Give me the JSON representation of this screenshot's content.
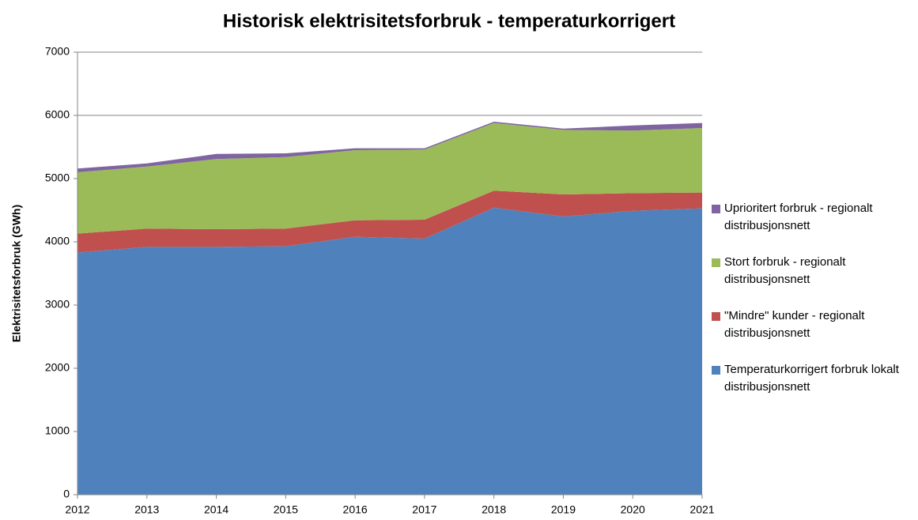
{
  "chart_data": {
    "type": "stacked-area",
    "title": "Historisk elektrisitetsforbruk - temperaturkorrigert",
    "y_label": "Elektrisitetsforbruk (GWh)",
    "x": [
      2012,
      2013,
      2014,
      2015,
      2016,
      2017,
      2018,
      2019,
      2020,
      2021
    ],
    "xlim": [
      2012,
      2021
    ],
    "xticks": [
      2012,
      2013,
      2014,
      2015,
      2016,
      2017,
      2018,
      2019,
      2020,
      2021
    ],
    "ylim": [
      0,
      7000
    ],
    "yticks": [
      0,
      1000,
      2000,
      3000,
      4000,
      5000,
      6000,
      7000
    ],
    "grid": true,
    "series": [
      {
        "name": "Temperaturkorrigert forbruk lokalt distribusjonsnett",
        "color": "#4f81bd",
        "values": [
          3830,
          3920,
          3920,
          3930,
          4080,
          4050,
          4540,
          4400,
          4490,
          4530
        ]
      },
      {
        "name": "\"Mindre\" kunder - regionalt distribusjonsnett",
        "color": "#c0504d",
        "values": [
          300,
          290,
          280,
          280,
          260,
          300,
          270,
          350,
          280,
          250
        ]
      },
      {
        "name": "Stort forbruk - regionalt distribusjonsnett",
        "color": "#9bbb59",
        "values": [
          970,
          980,
          1110,
          1130,
          1110,
          1110,
          1070,
          1020,
          990,
          1020
        ]
      },
      {
        "name": "Uprioritert forbruk - regionalt distribusjonsnett",
        "color": "#8064a2",
        "values": [
          60,
          50,
          80,
          60,
          30,
          20,
          20,
          20,
          80,
          80
        ]
      }
    ]
  }
}
